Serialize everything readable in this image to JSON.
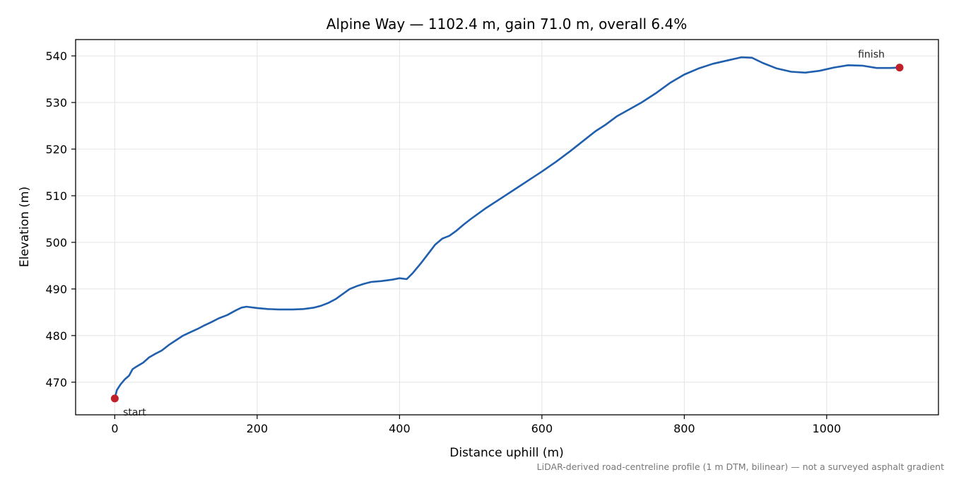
{
  "chart_data": {
    "type": "line",
    "title": "Alpine Way — 1102.4 m, gain 71.0 m, overall 6.4%",
    "xlabel": "Distance uphill (m)",
    "ylabel": "Elevation (m)",
    "xlim": [
      -55,
      1157
    ],
    "ylim": [
      463,
      543.5
    ],
    "x_ticks": [
      0,
      200,
      400,
      600,
      800,
      1000
    ],
    "y_ticks": [
      470,
      480,
      490,
      500,
      510,
      520,
      530,
      540
    ],
    "grid": true,
    "series": [
      {
        "color": "#1f5fad",
        "points": [
          [
            0,
            466.5
          ],
          [
            3,
            468.3
          ],
          [
            8,
            469.5
          ],
          [
            14,
            470.6
          ],
          [
            20,
            471.4
          ],
          [
            25,
            472.8
          ],
          [
            30,
            473.3
          ],
          [
            40,
            474.2
          ],
          [
            48,
            475.3
          ],
          [
            56,
            476.0
          ],
          [
            66,
            476.8
          ],
          [
            76,
            478.0
          ],
          [
            86,
            479.0
          ],
          [
            96,
            480.0
          ],
          [
            106,
            480.7
          ],
          [
            116,
            481.4
          ],
          [
            126,
            482.2
          ],
          [
            136,
            482.9
          ],
          [
            146,
            483.7
          ],
          [
            158,
            484.4
          ],
          [
            170,
            485.4
          ],
          [
            178,
            486.0
          ],
          [
            185,
            486.2
          ],
          [
            200,
            485.9
          ],
          [
            215,
            485.7
          ],
          [
            230,
            485.6
          ],
          [
            250,
            485.6
          ],
          [
            265,
            485.7
          ],
          [
            280,
            486.0
          ],
          [
            290,
            486.4
          ],
          [
            300,
            487.0
          ],
          [
            310,
            487.8
          ],
          [
            320,
            488.9
          ],
          [
            330,
            490.0
          ],
          [
            340,
            490.6
          ],
          [
            350,
            491.1
          ],
          [
            360,
            491.5
          ],
          [
            375,
            491.7
          ],
          [
            390,
            492.0
          ],
          [
            400,
            492.3
          ],
          [
            410,
            492.1
          ],
          [
            418,
            493.3
          ],
          [
            430,
            495.5
          ],
          [
            440,
            497.5
          ],
          [
            450,
            499.5
          ],
          [
            460,
            500.8
          ],
          [
            470,
            501.4
          ],
          [
            480,
            502.5
          ],
          [
            490,
            503.8
          ],
          [
            500,
            505.0
          ],
          [
            520,
            507.2
          ],
          [
            540,
            509.2
          ],
          [
            560,
            511.2
          ],
          [
            580,
            513.2
          ],
          [
            600,
            515.2
          ],
          [
            620,
            517.3
          ],
          [
            640,
            519.6
          ],
          [
            660,
            522.0
          ],
          [
            675,
            523.8
          ],
          [
            690,
            525.3
          ],
          [
            705,
            527.0
          ],
          [
            720,
            528.3
          ],
          [
            740,
            530.0
          ],
          [
            760,
            532.0
          ],
          [
            780,
            534.2
          ],
          [
            800,
            536.0
          ],
          [
            820,
            537.3
          ],
          [
            840,
            538.3
          ],
          [
            860,
            539.0
          ],
          [
            880,
            539.7
          ],
          [
            895,
            539.6
          ],
          [
            910,
            538.5
          ],
          [
            930,
            537.3
          ],
          [
            950,
            536.6
          ],
          [
            970,
            536.4
          ],
          [
            990,
            536.8
          ],
          [
            1010,
            537.5
          ],
          [
            1030,
            538.0
          ],
          [
            1050,
            537.9
          ],
          [
            1070,
            537.4
          ],
          [
            1090,
            537.4
          ],
          [
            1102.4,
            537.5
          ]
        ]
      }
    ],
    "markers": [
      {
        "x": 0,
        "y": 466.5,
        "label": "start",
        "color": "#c0202a"
      },
      {
        "x": 1102.4,
        "y": 537.5,
        "label": "finish",
        "color": "#c0202a"
      }
    ],
    "footnote": "LiDAR-derived road-centreline profile (1 m DTM, bilinear) — not a surveyed asphalt gradient"
  }
}
